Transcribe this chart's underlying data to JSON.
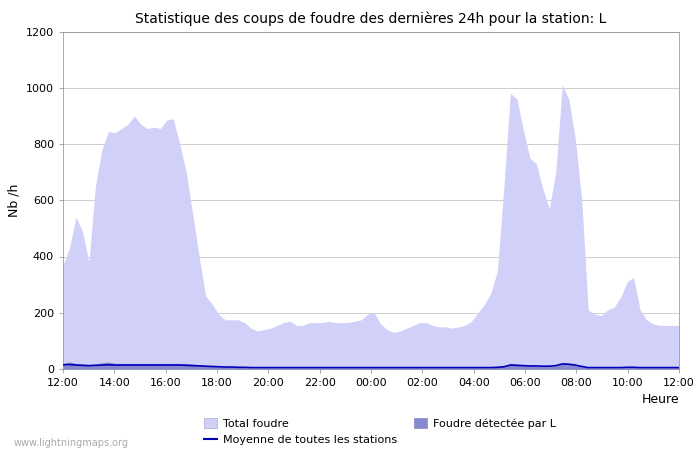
{
  "title": "Statistique des coups de foudre des dernières 24h pour la station: L",
  "xlabel": "Heure",
  "ylabel": "Nb /h",
  "watermark": "www.lightningmaps.org",
  "ylim": [
    0,
    1200
  ],
  "yticks": [
    0,
    200,
    400,
    600,
    800,
    1000,
    1200
  ],
  "xtick_labels": [
    "12:00",
    "14:00",
    "16:00",
    "18:00",
    "20:00",
    "22:00",
    "00:00",
    "02:00",
    "04:00",
    "06:00",
    "08:00",
    "10:00",
    "12:00"
  ],
  "color_total": "#d0d0f8",
  "color_detected": "#8888cc",
  "color_moyenne": "#0000bb",
  "legend_total": "Total foudre",
  "legend_detected": "Foudre détectée par L",
  "legend_moyenne": "Moyenne de toutes les stations",
  "total_values": [
    370,
    430,
    540,
    490,
    380,
    650,
    780,
    845,
    840,
    855,
    870,
    900,
    870,
    855,
    860,
    855,
    885,
    890,
    800,
    700,
    550,
    400,
    260,
    230,
    195,
    175,
    175,
    175,
    165,
    145,
    135,
    140,
    145,
    155,
    165,
    170,
    155,
    155,
    165,
    165,
    165,
    170,
    165,
    165,
    165,
    170,
    175,
    195,
    200,
    160,
    140,
    130,
    135,
    145,
    155,
    165,
    165,
    155,
    150,
    150,
    145,
    150,
    155,
    170,
    200,
    230,
    270,
    350,
    650,
    980,
    960,
    850,
    750,
    730,
    640,
    570,
    700,
    1010,
    960,
    820,
    600,
    210,
    195,
    190,
    210,
    220,
    255,
    310,
    325,
    210,
    175,
    160,
    155,
    155,
    155,
    155
  ],
  "detected_values": [
    20,
    25,
    20,
    18,
    15,
    18,
    22,
    25,
    20,
    20,
    20,
    20,
    20,
    20,
    20,
    20,
    20,
    20,
    20,
    20,
    18,
    15,
    12,
    10,
    8,
    6,
    6,
    5,
    5,
    4,
    4,
    4,
    4,
    4,
    4,
    4,
    4,
    4,
    4,
    4,
    4,
    4,
    4,
    4,
    4,
    4,
    4,
    4,
    4,
    4,
    4,
    4,
    4,
    4,
    4,
    4,
    4,
    4,
    4,
    4,
    4,
    4,
    4,
    4,
    4,
    4,
    4,
    6,
    10,
    20,
    18,
    15,
    12,
    12,
    10,
    10,
    12,
    22,
    20,
    15,
    8,
    4,
    4,
    4,
    4,
    4,
    4,
    5,
    5,
    4,
    4,
    4,
    4,
    4,
    4,
    4
  ],
  "moyenne_values": [
    15,
    16,
    14,
    13,
    12,
    13,
    14,
    15,
    14,
    14,
    14,
    14,
    14,
    14,
    14,
    14,
    14,
    14,
    14,
    13,
    12,
    11,
    10,
    9,
    8,
    7,
    7,
    6,
    6,
    5,
    5,
    5,
    5,
    5,
    5,
    5,
    5,
    5,
    5,
    5,
    5,
    5,
    5,
    5,
    5,
    5,
    5,
    5,
    5,
    5,
    5,
    5,
    5,
    5,
    5,
    5,
    5,
    5,
    5,
    5,
    5,
    5,
    5,
    5,
    5,
    5,
    5,
    6,
    8,
    14,
    13,
    12,
    11,
    11,
    10,
    10,
    12,
    18,
    17,
    14,
    9,
    5,
    5,
    5,
    5,
    5,
    5,
    6,
    6,
    5,
    5,
    5,
    5,
    5,
    5,
    5
  ]
}
